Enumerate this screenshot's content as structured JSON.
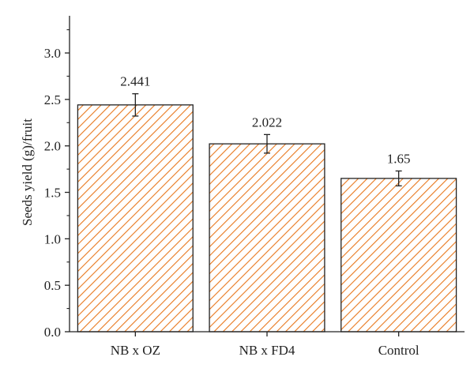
{
  "chart_data": {
    "type": "bar",
    "categories": [
      "NB x OZ",
      "NB x FD4",
      "Control"
    ],
    "values": [
      2.441,
      2.022,
      1.65
    ],
    "data_labels": [
      "2.441",
      "2.022",
      "1.65"
    ],
    "error": [
      0.12,
      0.1,
      0.08
    ],
    "title": "",
    "xlabel": "",
    "ylabel": "Seeds yield (g)/fruit",
    "ylim": [
      0,
      3.4
    ],
    "yticks": [
      0.0,
      0.5,
      1.0,
      1.5,
      2.0,
      2.5,
      3.0
    ],
    "ytick_labels": [
      "0.0",
      "0.5",
      "1.0",
      "1.5",
      "2.0",
      "2.5",
      "3.0"
    ],
    "grid": false,
    "bar_style": "diagonal-hatch",
    "colors": {
      "hatch": "#e8781e",
      "bar_edge": "#222222",
      "axis": "#222222"
    }
  }
}
